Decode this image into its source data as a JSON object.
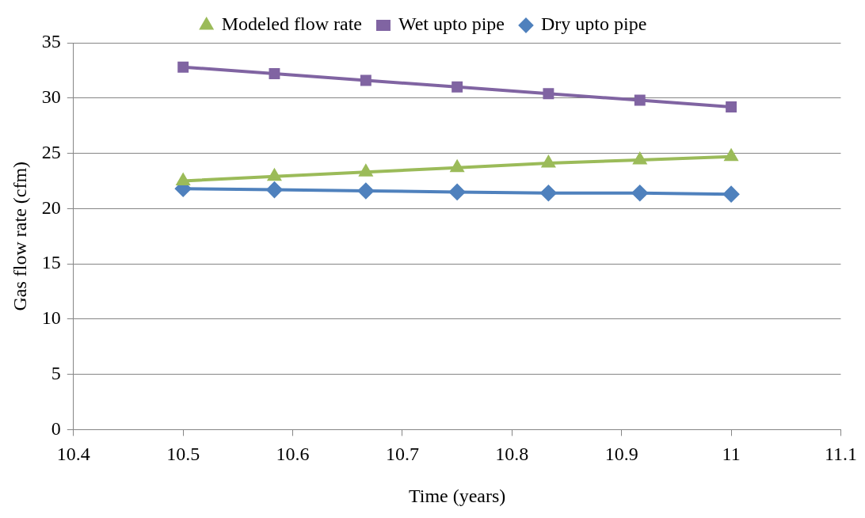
{
  "chart_data": {
    "type": "line",
    "xlabel": "Time (years)",
    "ylabel": "Gas flow rate (cfm)",
    "x": [
      10.5,
      10.5833,
      10.6667,
      10.75,
      10.8333,
      10.9167,
      11
    ],
    "series": [
      {
        "name": "Modeled flow rate",
        "color": "#9bbb59",
        "marker": "triangle",
        "values": [
          22.5,
          22.9,
          23.3,
          23.7,
          24.1,
          24.4,
          24.7
        ]
      },
      {
        "name": "Wet upto pipe",
        "color": "#8064a2",
        "marker": "square",
        "values": [
          32.8,
          32.2,
          31.6,
          31.0,
          30.4,
          29.8,
          29.2
        ]
      },
      {
        "name": "Dry upto pipe",
        "color": "#4f81bd",
        "marker": "diamond",
        "values": [
          21.8,
          21.7,
          21.6,
          21.5,
          21.4,
          21.4,
          21.3
        ]
      }
    ],
    "xlim": [
      10.4,
      11.1
    ],
    "xticks": [
      10.4,
      10.5,
      10.6,
      10.7,
      10.8,
      10.9,
      11,
      11.1
    ],
    "ylim": [
      0,
      35
    ],
    "yticks": [
      0,
      5,
      10,
      15,
      20,
      25,
      30,
      35
    ],
    "grid": "y",
    "legend": "top",
    "line_style": "solid"
  }
}
